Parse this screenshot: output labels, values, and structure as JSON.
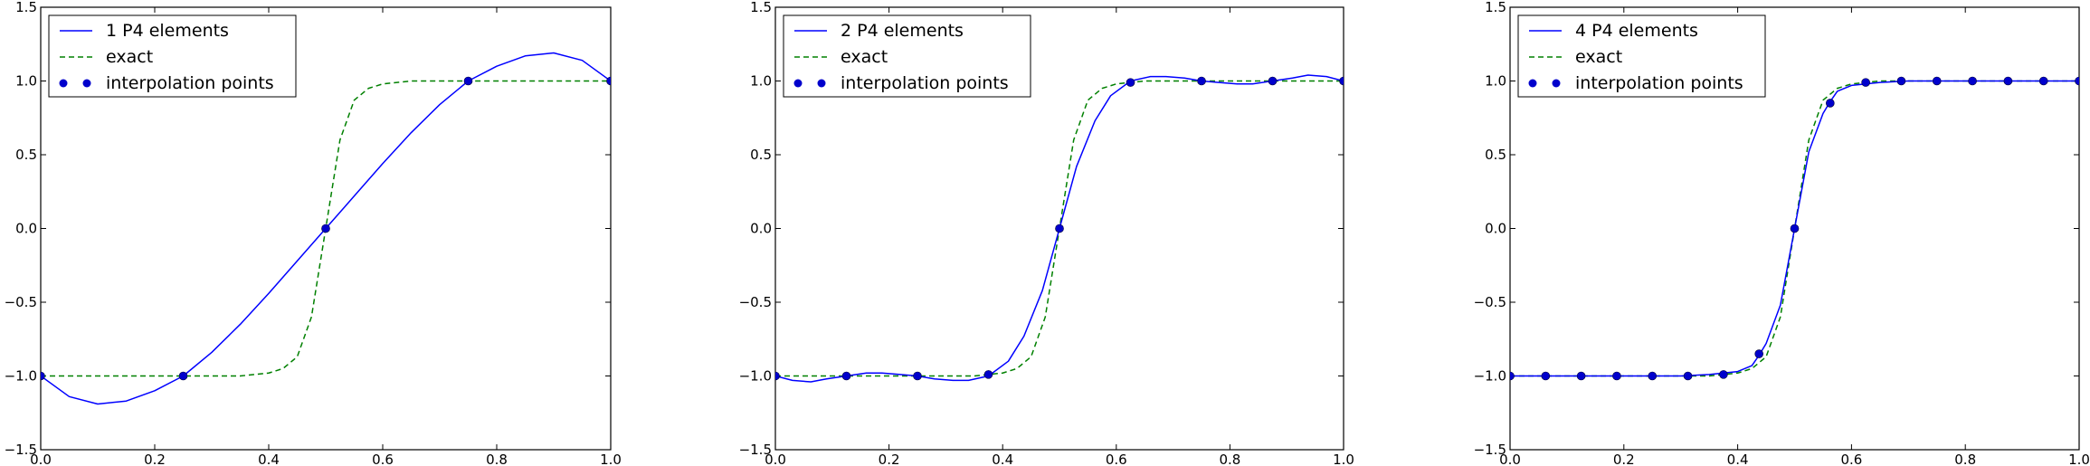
{
  "chart_data": [
    {
      "type": "line",
      "xlim": [
        0.0,
        1.0
      ],
      "ylim": [
        -1.5,
        1.5
      ],
      "x_ticks": [
        "0.0",
        "0.2",
        "0.4",
        "0.6",
        "0.8",
        "1.0"
      ],
      "y_ticks": [
        "1.5",
        "1.0",
        "0.5",
        "0.0",
        "−0.5",
        "−1.0",
        "−1.5"
      ],
      "legend_position": "top-left",
      "series": [
        {
          "name": "1 P4 elements",
          "style": "solid",
          "color": "#0000ff",
          "x": [
            0.0,
            0.05,
            0.1,
            0.15,
            0.2,
            0.25,
            0.3,
            0.35,
            0.4,
            0.45,
            0.5,
            0.55,
            0.6,
            0.65,
            0.7,
            0.75,
            0.8,
            0.85,
            0.9,
            0.95,
            1.0
          ],
          "y": [
            -1.0,
            -1.14,
            -1.19,
            -1.17,
            -1.1,
            -1.0,
            -0.84,
            -0.65,
            -0.44,
            -0.22,
            0.0,
            0.22,
            0.44,
            0.65,
            0.84,
            1.0,
            1.1,
            1.17,
            1.19,
            1.14,
            1.0
          ]
        },
        {
          "name": "exact",
          "style": "dashed",
          "color": "#008000",
          "x": [
            0.0,
            0.05,
            0.1,
            0.15,
            0.2,
            0.25,
            0.3,
            0.35,
            0.4,
            0.425,
            0.45,
            0.475,
            0.5,
            0.525,
            0.55,
            0.575,
            0.6,
            0.65,
            0.7,
            0.75,
            0.8,
            0.85,
            0.9,
            0.95,
            1.0
          ],
          "y": [
            -1.0,
            -1.0,
            -1.0,
            -1.0,
            -1.0,
            -1.0,
            -1.0,
            -1.0,
            -0.98,
            -0.95,
            -0.87,
            -0.6,
            0.0,
            0.6,
            0.87,
            0.95,
            0.98,
            1.0,
            1.0,
            1.0,
            1.0,
            1.0,
            1.0,
            1.0,
            1.0
          ]
        },
        {
          "name": "interpolation points",
          "style": "markers",
          "color": "#0000cc",
          "x": [
            0.0,
            0.25,
            0.5,
            0.75,
            1.0
          ],
          "y": [
            -1.0,
            -1.0,
            0.0,
            1.0,
            1.0
          ]
        }
      ]
    },
    {
      "type": "line",
      "xlim": [
        0.0,
        1.0
      ],
      "ylim": [
        -1.5,
        1.5
      ],
      "x_ticks": [
        "0.0",
        "0.2",
        "0.4",
        "0.6",
        "0.8",
        "1.0"
      ],
      "y_ticks": [
        "1.5",
        "1.0",
        "0.5",
        "0.0",
        "−0.5",
        "−1.0",
        "−1.5"
      ],
      "legend_position": "top-left",
      "series": [
        {
          "name": "2 P4 elements",
          "style": "solid",
          "color": "#0000ff",
          "x": [
            0.0,
            0.03,
            0.0625,
            0.09,
            0.125,
            0.16,
            0.1875,
            0.22,
            0.25,
            0.28,
            0.3125,
            0.34,
            0.375,
            0.41,
            0.4375,
            0.47,
            0.5,
            0.53,
            0.5625,
            0.59,
            0.625,
            0.66,
            0.6875,
            0.72,
            0.75,
            0.78,
            0.8125,
            0.84,
            0.875,
            0.91,
            0.9375,
            0.97,
            1.0
          ],
          "y": [
            -1.0,
            -1.03,
            -1.04,
            -1.02,
            -1.0,
            -0.98,
            -0.98,
            -0.99,
            -1.0,
            -1.02,
            -1.03,
            -1.03,
            -1.0,
            -0.9,
            -0.73,
            -0.42,
            0.0,
            0.42,
            0.73,
            0.9,
            1.0,
            1.03,
            1.03,
            1.02,
            1.0,
            0.99,
            0.98,
            0.98,
            1.0,
            1.02,
            1.04,
            1.03,
            1.0
          ]
        },
        {
          "name": "exact",
          "style": "dashed",
          "color": "#008000",
          "x": [
            0.0,
            0.05,
            0.1,
            0.15,
            0.2,
            0.25,
            0.3,
            0.35,
            0.4,
            0.425,
            0.45,
            0.475,
            0.5,
            0.525,
            0.55,
            0.575,
            0.6,
            0.65,
            0.7,
            0.75,
            0.8,
            0.85,
            0.9,
            0.95,
            1.0
          ],
          "y": [
            -1.0,
            -1.0,
            -1.0,
            -1.0,
            -1.0,
            -1.0,
            -1.0,
            -1.0,
            -0.98,
            -0.95,
            -0.87,
            -0.6,
            0.0,
            0.6,
            0.87,
            0.95,
            0.98,
            1.0,
            1.0,
            1.0,
            1.0,
            1.0,
            1.0,
            1.0,
            1.0
          ]
        },
        {
          "name": "interpolation points",
          "style": "markers",
          "color": "#0000cc",
          "x": [
            0.0,
            0.125,
            0.25,
            0.375,
            0.5,
            0.625,
            0.75,
            0.875,
            1.0
          ],
          "y": [
            -1.0,
            -1.0,
            -1.0,
            -0.99,
            0.0,
            0.99,
            1.0,
            1.0,
            1.0
          ]
        }
      ]
    },
    {
      "type": "line",
      "xlim": [
        0.0,
        1.0
      ],
      "ylim": [
        -1.5,
        1.5
      ],
      "x_ticks": [
        "0.0",
        "0.2",
        "0.4",
        "0.6",
        "0.8",
        "1.0"
      ],
      "y_ticks": [
        "1.5",
        "1.0",
        "0.5",
        "0.0",
        "−0.5",
        "−1.0",
        "−1.5"
      ],
      "legend_position": "top-left",
      "series": [
        {
          "name": "4 P4 elements",
          "style": "solid",
          "color": "#0000ff",
          "x": [
            0.0,
            0.05,
            0.1,
            0.15,
            0.2,
            0.25,
            0.3,
            0.35,
            0.4,
            0.425,
            0.4375,
            0.45,
            0.475,
            0.5,
            0.525,
            0.55,
            0.5625,
            0.575,
            0.6,
            0.65,
            0.7,
            0.75,
            0.8,
            0.85,
            0.9,
            0.95,
            1.0
          ],
          "y": [
            -1.0,
            -1.0,
            -1.0,
            -1.0,
            -1.0,
            -1.0,
            -1.0,
            -0.99,
            -0.97,
            -0.93,
            -0.86,
            -0.78,
            -0.52,
            0.0,
            0.52,
            0.78,
            0.86,
            0.93,
            0.97,
            0.99,
            1.0,
            1.0,
            1.0,
            1.0,
            1.0,
            1.0,
            1.0
          ]
        },
        {
          "name": "exact",
          "style": "dashed",
          "color": "#008000",
          "x": [
            0.0,
            0.05,
            0.1,
            0.15,
            0.2,
            0.25,
            0.3,
            0.35,
            0.4,
            0.425,
            0.45,
            0.475,
            0.5,
            0.525,
            0.55,
            0.575,
            0.6,
            0.65,
            0.7,
            0.75,
            0.8,
            0.85,
            0.9,
            0.95,
            1.0
          ],
          "y": [
            -1.0,
            -1.0,
            -1.0,
            -1.0,
            -1.0,
            -1.0,
            -1.0,
            -1.0,
            -0.98,
            -0.95,
            -0.87,
            -0.6,
            0.0,
            0.6,
            0.87,
            0.95,
            0.98,
            1.0,
            1.0,
            1.0,
            1.0,
            1.0,
            1.0,
            1.0,
            1.0
          ]
        },
        {
          "name": "interpolation points",
          "style": "markers",
          "color": "#0000cc",
          "x": [
            0.0,
            0.0625,
            0.125,
            0.1875,
            0.25,
            0.3125,
            0.375,
            0.4375,
            0.5,
            0.5625,
            0.625,
            0.6875,
            0.75,
            0.8125,
            0.875,
            0.9375,
            1.0
          ],
          "y": [
            -1.0,
            -1.0,
            -1.0,
            -1.0,
            -1.0,
            -1.0,
            -0.99,
            -0.85,
            0.0,
            0.85,
            0.99,
            1.0,
            1.0,
            1.0,
            1.0,
            1.0,
            1.0
          ]
        }
      ]
    }
  ]
}
